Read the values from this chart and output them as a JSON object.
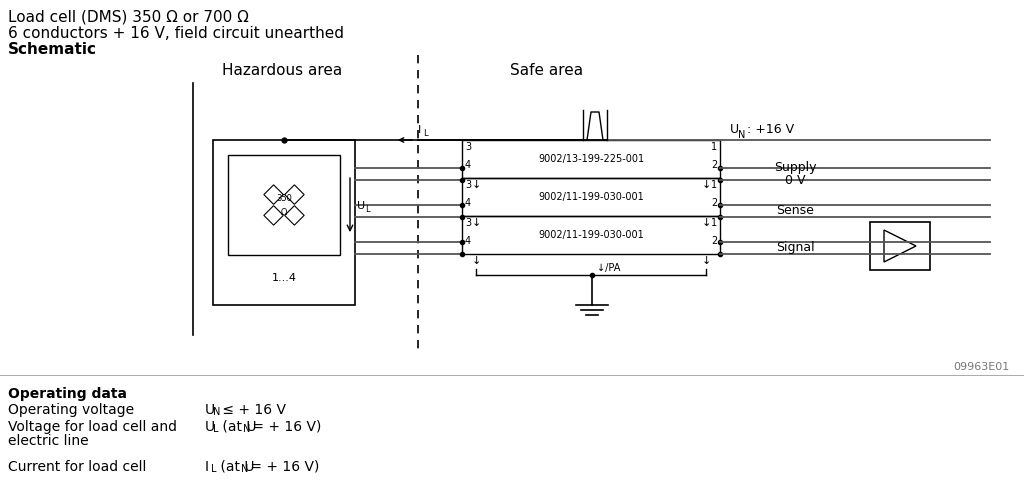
{
  "title_line1": "Load cell (DMS) 350 Ω or 700 Ω",
  "title_line2": "6 conductors + 16 V, field circuit unearthed",
  "title_line3": "Schematic",
  "hazardous_area_label": "Hazardous area",
  "safe_area_label": "Safe area",
  "barrier1_label": "9002/13-199-225-001",
  "barrier2_label": "9002/11-199-030-001",
  "barrier3_label": "9002/11-199-030-001",
  "supply_label": "Supply",
  "zero_v_label": "0 V",
  "sense_label": "Sense",
  "signal_label": "Signal",
  "un_label": "U",
  "un_sub": "N",
  "un_val": " : +16 V",
  "operating_data_label": "Operating data",
  "op_voltage_label": "Operating voltage",
  "op_voltage_value": "U",
  "op_voltage_sub": "N",
  "op_voltage_rest": " ≤ + 16 V",
  "voltage_lc_label": "Voltage for load cell and",
  "voltage_lc_label2": "electric line",
  "voltage_lc_value": "U",
  "voltage_lc_sub": "L",
  "voltage_lc_rest": " (at U",
  "voltage_lc_sub2": "N",
  "voltage_lc_rest2": " = + 16 V)",
  "current_lc_label": "Current for load cell",
  "current_lc_value": "I",
  "current_lc_sub": "L",
  "current_lc_rest": " (at U",
  "current_lc_sub2": "N",
  "current_lc_rest2": " = + 16 V)",
  "ref_label": "09963E01",
  "il_label": "I",
  "il_sub": "L",
  "ul_label": "U",
  "ul_sub": "L",
  "bg_color": "#ffffff",
  "line_color": "#000000",
  "gray_color": "#777777"
}
